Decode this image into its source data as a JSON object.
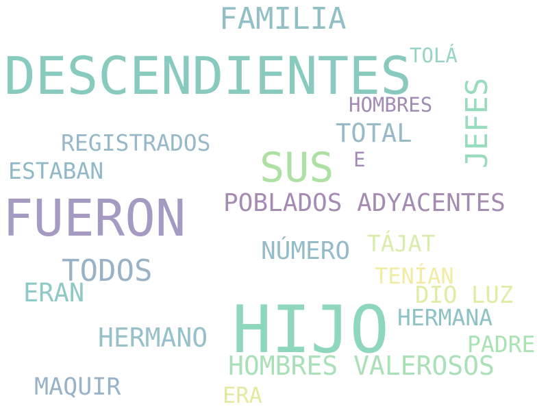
{
  "words": [
    {
      "text": "DESCENDIENTES",
      "color": "#88cbbe"
    },
    {
      "text": "FAMILIA",
      "color": "#92bec5"
    },
    {
      "text": "TOLÁ",
      "color": "#97d3c6"
    },
    {
      "text": "JEFES",
      "color": "#98dcbe"
    },
    {
      "text": "HOMBRES",
      "color": "#a28bb3"
    },
    {
      "text": "TOTAL",
      "color": "#98b9c6"
    },
    {
      "text": "REGISTRADOS",
      "color": "#97b8c8"
    },
    {
      "text": "SUS",
      "color": "#aee0a4"
    },
    {
      "text": "E",
      "color": "#a489b8"
    },
    {
      "text": "ESTABAN",
      "color": "#90b9c8"
    },
    {
      "text": "FUERON",
      "color": "#a59ac2"
    },
    {
      "text": "POBLADOS ADYACENTES",
      "color": "#a58bb2"
    },
    {
      "text": "TÁJAT",
      "color": "#d9ecaa"
    },
    {
      "text": "NÚMERO",
      "color": "#93bcc8"
    },
    {
      "text": "TODOS",
      "color": "#9ab2c5"
    },
    {
      "text": "TENÍAN",
      "color": "#f2eba2"
    },
    {
      "text": "ERAN",
      "color": "#8ec9c4"
    },
    {
      "text": "DIO LUZ",
      "color": "#e2eba4"
    },
    {
      "text": "HIJO",
      "color": "#8fd7bc"
    },
    {
      "text": "HERMANA",
      "color": "#8ec2c4"
    },
    {
      "text": "HERMANO",
      "color": "#97c1c9"
    },
    {
      "text": "PADRE",
      "color": "#a9e3b3"
    },
    {
      "text": "HOMBRES VALEROSOS",
      "color": "#a9e0b8"
    },
    {
      "text": "MAQUIR",
      "color": "#9ab2c7"
    },
    {
      "text": "ERA",
      "color": "#e5e89e"
    }
  ]
}
